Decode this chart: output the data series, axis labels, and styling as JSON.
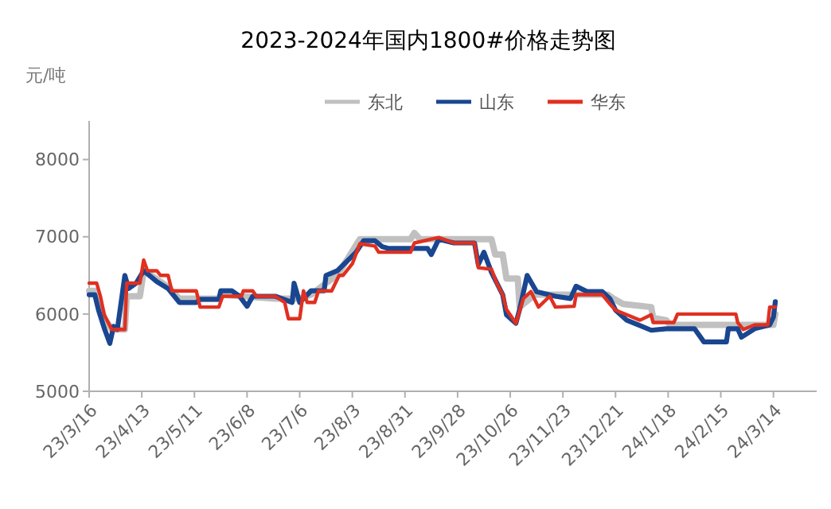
{
  "chart_data": {
    "type": "line",
    "title": "2023-2024年国内1800#价格走势图",
    "ylabel": "元/吨",
    "xlim": [
      "2023-03-16",
      "2024-04-06"
    ],
    "ylim": [
      5000,
      8500
    ],
    "yticks": [
      5000,
      6000,
      7000,
      8000
    ],
    "xticks": [
      {
        "value": "2023-03-16",
        "label": "23/3/16"
      },
      {
        "value": "2023-04-13",
        "label": "23/4/13"
      },
      {
        "value": "2023-05-11",
        "label": "23/5/11"
      },
      {
        "value": "2023-06-08",
        "label": "23/6/8"
      },
      {
        "value": "2023-07-06",
        "label": "23/7/6"
      },
      {
        "value": "2023-08-03",
        "label": "23/8/3"
      },
      {
        "value": "2023-08-31",
        "label": "23/8/31"
      },
      {
        "value": "2023-09-28",
        "label": "23/9/28"
      },
      {
        "value": "2023-10-26",
        "label": "23/10/26"
      },
      {
        "value": "2023-11-23",
        "label": "23/11/23"
      },
      {
        "value": "2023-12-21",
        "label": "23/12/21"
      },
      {
        "value": "2024-01-18",
        "label": "24/1/18"
      },
      {
        "value": "2024-02-15",
        "label": "24/2/15"
      },
      {
        "value": "2024-03-14",
        "label": "24/3/14"
      }
    ],
    "grid": false,
    "legend": "top",
    "marker": "none",
    "line_style": "solid",
    "series": [
      {
        "name": "东北",
        "color": "#c0c0c0",
        "x": [
          "2023-03-16",
          "2023-03-20",
          "2023-03-24",
          "2023-03-28",
          "2023-04-04",
          "2023-04-05",
          "2023-04-12",
          "2023-04-14",
          "2023-04-21",
          "2023-04-27",
          "2023-05-03",
          "2023-05-24",
          "2023-05-25",
          "2023-06-23",
          "2023-07-06",
          "2023-07-12",
          "2023-07-20",
          "2023-07-26",
          "2023-08-07",
          "2023-09-03",
          "2023-09-05",
          "2023-09-08",
          "2023-10-16",
          "2023-10-18",
          "2023-10-22",
          "2023-10-24",
          "2023-10-30",
          "2023-10-31",
          "2023-11-08",
          "2023-11-27",
          "2023-12-17",
          "2023-12-20",
          "2023-12-25",
          "2024-01-09",
          "2024-01-10",
          "2024-01-17",
          "2024-01-19",
          "2024-03-14",
          "2024-03-15"
        ],
        "values": [
          6300,
          6300,
          5950,
          5800,
          5800,
          6230,
          6230,
          6560,
          6450,
          6350,
          6200,
          6200,
          6250,
          6200,
          6200,
          6250,
          6400,
          6500,
          6970,
          6970,
          7050,
          6970,
          6970,
          6770,
          6770,
          6460,
          6460,
          6090,
          6250,
          6250,
          6250,
          6200,
          6130,
          6090,
          5950,
          5920,
          5860,
          5860,
          6000
        ]
      },
      {
        "name": "山东",
        "color": "#1a4690",
        "x": [
          "2023-03-16",
          "2023-03-19",
          "2023-03-21",
          "2023-03-24",
          "2023-03-27",
          "2023-03-29",
          "2023-03-31",
          "2023-04-04",
          "2023-04-06",
          "2023-04-10",
          "2023-04-14",
          "2023-04-21",
          "2023-04-27",
          "2023-05-03",
          "2023-05-12",
          "2023-05-14",
          "2023-05-24",
          "2023-05-25",
          "2023-05-31",
          "2023-06-04",
          "2023-06-08",
          "2023-06-11",
          "2023-06-23",
          "2023-07-02",
          "2023-07-03",
          "2023-07-06",
          "2023-07-12",
          "2023-07-19",
          "2023-07-20",
          "2023-07-26",
          "2023-08-05",
          "2023-08-09",
          "2023-08-15",
          "2023-08-19",
          "2023-08-22",
          "2023-09-12",
          "2023-09-14",
          "2023-09-18",
          "2023-09-26",
          "2023-10-07",
          "2023-10-09",
          "2023-10-12",
          "2023-10-16",
          "2023-10-22",
          "2023-10-24",
          "2023-10-29",
          "2023-10-31",
          "2023-11-04",
          "2023-11-09",
          "2023-11-19",
          "2023-11-27",
          "2023-11-30",
          "2023-12-06",
          "2023-12-14",
          "2023-12-18",
          "2023-12-21",
          "2023-12-27",
          "2024-01-02",
          "2024-01-09",
          "2024-01-17",
          "2024-02-01",
          "2024-02-06",
          "2024-02-18",
          "2024-02-19",
          "2024-02-24",
          "2024-02-26",
          "2024-03-04",
          "2024-03-12",
          "2024-03-14",
          "2024-03-15"
        ],
        "values": [
          6250,
          6250,
          6050,
          5820,
          5620,
          5840,
          5800,
          6500,
          6330,
          6400,
          6560,
          6420,
          6330,
          6150,
          6150,
          6190,
          6190,
          6300,
          6300,
          6230,
          6100,
          6230,
          6230,
          6150,
          6400,
          6150,
          6300,
          6300,
          6500,
          6560,
          6800,
          6950,
          6950,
          6870,
          6850,
          6850,
          6770,
          6970,
          6920,
          6920,
          6640,
          6800,
          6540,
          6250,
          5990,
          5880,
          6060,
          6500,
          6290,
          6230,
          6200,
          6360,
          6290,
          6290,
          6200,
          6050,
          5920,
          5860,
          5790,
          5810,
          5810,
          5640,
          5640,
          5810,
          5810,
          5700,
          5810,
          5860,
          5960,
          6160
        ]
      },
      {
        "name": "华东",
        "color": "#e03020",
        "x": [
          "2023-03-16",
          "2023-03-20",
          "2023-03-22",
          "2023-03-24",
          "2023-03-28",
          "2023-04-04",
          "2023-04-05",
          "2023-04-12",
          "2023-04-14",
          "2023-04-16",
          "2023-04-21",
          "2023-04-23",
          "2023-04-27",
          "2023-04-29",
          "2023-05-12",
          "2023-05-14",
          "2023-05-24",
          "2023-05-26",
          "2023-06-05",
          "2023-06-06",
          "2023-06-11",
          "2023-06-13",
          "2023-06-23",
          "2023-06-28",
          "2023-06-30",
          "2023-07-06",
          "2023-07-08",
          "2023-07-10",
          "2023-07-14",
          "2023-07-16",
          "2023-07-23",
          "2023-07-27",
          "2023-07-29",
          "2023-08-03",
          "2023-08-07",
          "2023-08-15",
          "2023-08-17",
          "2023-09-03",
          "2023-09-05",
          "2023-09-18",
          "2023-09-26",
          "2023-10-07",
          "2023-10-09",
          "2023-10-16",
          "2023-10-19",
          "2023-10-22",
          "2023-10-24",
          "2023-10-29",
          "2023-11-02",
          "2023-11-06",
          "2023-11-10",
          "2023-11-16",
          "2023-11-19",
          "2023-11-29",
          "2023-11-30",
          "2023-12-14",
          "2023-12-18",
          "2023-12-21",
          "2023-12-27",
          "2024-01-03",
          "2024-01-09",
          "2024-01-10",
          "2024-01-21",
          "2024-01-23",
          "2024-02-23",
          "2024-02-24",
          "2024-02-27",
          "2024-03-04",
          "2024-03-11",
          "2024-03-12",
          "2024-03-15"
        ],
        "values": [
          6400,
          6400,
          6230,
          5990,
          5800,
          5800,
          6400,
          6400,
          6700,
          6560,
          6560,
          6500,
          6500,
          6300,
          6300,
          6090,
          6090,
          6230,
          6230,
          6300,
          6300,
          6230,
          6230,
          6150,
          5940,
          5940,
          6300,
          6150,
          6150,
          6300,
          6300,
          6500,
          6500,
          6650,
          6910,
          6880,
          6800,
          6800,
          6920,
          6990,
          6920,
          6920,
          6600,
          6580,
          6390,
          6250,
          6060,
          5880,
          6200,
          6290,
          6090,
          6230,
          6090,
          6100,
          6250,
          6250,
          6130,
          6050,
          5990,
          5920,
          5990,
          5890,
          5890,
          6000,
          6000,
          5890,
          5800,
          5860,
          5860,
          6090,
          6090
        ]
      }
    ]
  }
}
